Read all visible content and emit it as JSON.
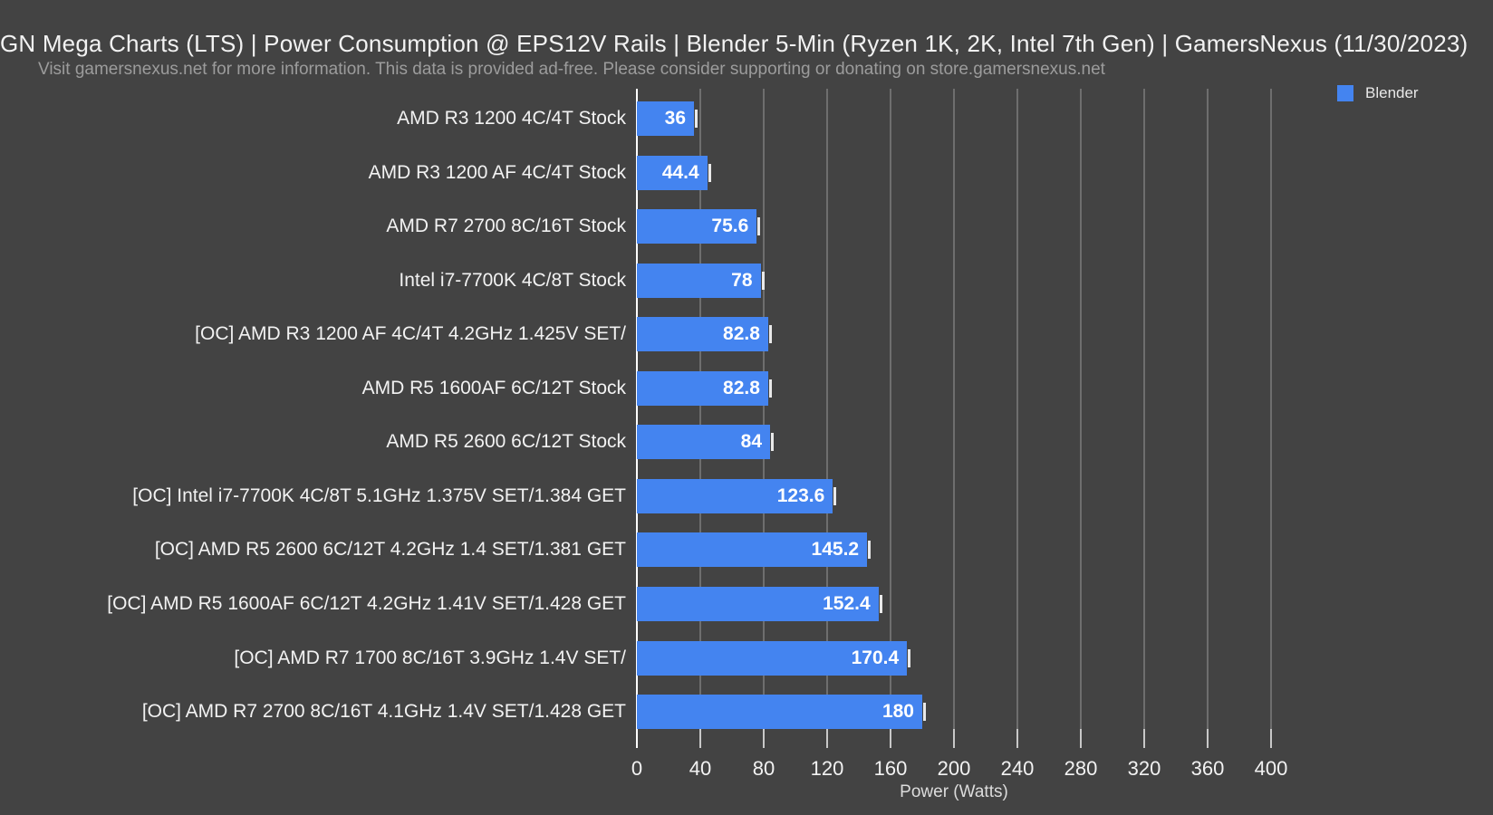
{
  "header": {
    "title": "GN Mega Charts (LTS) | Power Consumption @ EPS12V Rails | Blender 5-Min (Ryzen 1K, 2K, Intel 7th Gen) | GamersNexus (11/30/2023)",
    "subtitle": "Visit gamersnexus.net for more information. This data is provided ad-free. Please consider supporting or donating on store.gamersnexus.net"
  },
  "legend": {
    "label": "Blender",
    "swatch_color": "#4484f0",
    "position": "top-right"
  },
  "chart_data": {
    "type": "bar",
    "orientation": "horizontal",
    "title": "GN Mega Charts (LTS) | Power Consumption @ EPS12V Rails | Blender 5-Min (Ryzen 1K, 2K, Intel 7th Gen) | GamersNexus (11/30/2023)",
    "subtitle": "Visit gamersnexus.net for more information. This data is provided ad-free. Please consider supporting or donating on store.gamersnexus.net",
    "xlabel": "Power (Watts)",
    "ylabel": "",
    "xlim": [
      0,
      400
    ],
    "xticks": [
      0,
      40,
      80,
      120,
      160,
      200,
      240,
      280,
      320,
      360,
      400
    ],
    "grid": true,
    "legend_position": "top-right",
    "series_name": "Blender",
    "has_error_whiskers": true,
    "categories": [
      "AMD R3 1200 4C/4T Stock",
      "AMD R3 1200 AF 4C/4T Stock",
      "AMD R7 2700 8C/16T Stock",
      "Intel i7-7700K 4C/8T Stock",
      "[OC] AMD R3 1200 AF 4C/4T 4.2GHz 1.425V SET/",
      "AMD R5 1600AF 6C/12T Stock",
      "AMD R5 2600 6C/12T Stock",
      "[OC] Intel i7-7700K 4C/8T 5.1GHz 1.375V SET/1.384 GET",
      "[OC] AMD R5 2600 6C/12T 4.2GHz 1.4 SET/1.381 GET",
      "[OC] AMD R5 1600AF 6C/12T 4.2GHz 1.41V SET/1.428 GET",
      "[OC] AMD R7 1700 8C/16T 3.9GHz 1.4V SET/",
      "[OC] AMD R7 2700 8C/16T 4.1GHz 1.4V SET/1.428 GET"
    ],
    "values": [
      36,
      44.4,
      75.6,
      78,
      82.8,
      82.8,
      84,
      123.6,
      145.2,
      152.4,
      170.4,
      180
    ],
    "value_labels": [
      "36",
      "44.4",
      "75.6",
      "78",
      "82.8",
      "82.8",
      "84",
      "123.6",
      "145.2",
      "152.4",
      "170.4",
      "180"
    ]
  },
  "colors": {
    "background": "#434343",
    "gridline": "#6e6e6e",
    "axis_line": "#ffffff",
    "tick": "#c8c8c8",
    "bar": "#4484f0",
    "whisker": "#e9e9e9",
    "title_text": "#f2f2f2",
    "subtitle_text": "#9c9c9c",
    "value_text": "#ffffff",
    "axis_label_text": "#dcdcdc"
  }
}
